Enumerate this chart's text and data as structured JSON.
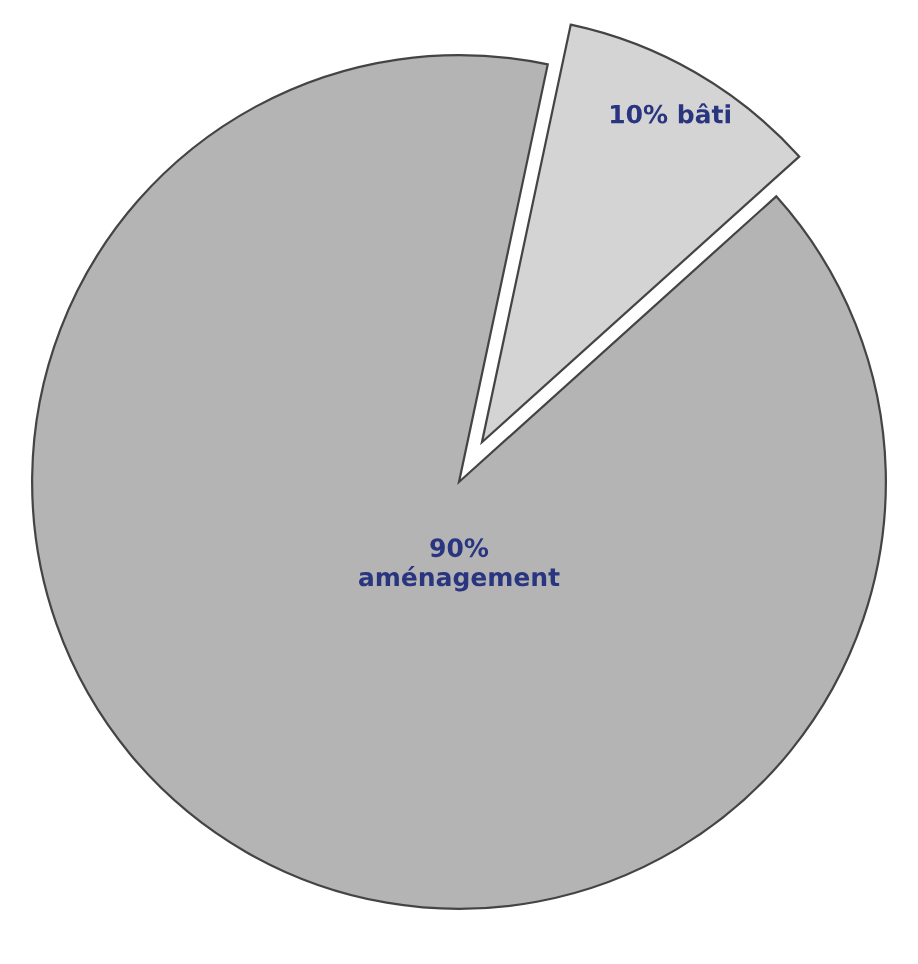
{
  "chart_data": {
    "type": "pie",
    "categories": [
      "bâti",
      "aménagement"
    ],
    "values": [
      10,
      90
    ],
    "value_labels": [
      "10%",
      "90%"
    ],
    "colors": [
      "#d4d4d4",
      "#b4b4b4"
    ]
  }
}
